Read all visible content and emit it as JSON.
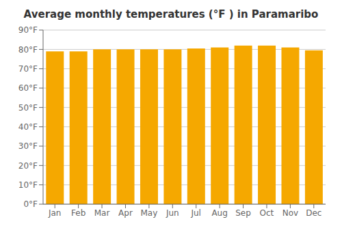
{
  "chart_data": {
    "type": "bar",
    "title": "Average monthly temperatures (°F ) in Paramaribo",
    "categories": [
      "Jan",
      "Feb",
      "Mar",
      "Apr",
      "May",
      "Jun",
      "Jul",
      "Aug",
      "Sep",
      "Oct",
      "Nov",
      "Dec"
    ],
    "values": [
      79,
      79,
      80,
      80,
      80,
      80,
      80.5,
      81,
      82,
      82,
      81,
      79.5
    ],
    "color": "#F5A800",
    "ylim": [
      0,
      90
    ],
    "yticks": [
      {
        "value": 0,
        "label": "0°F"
      },
      {
        "value": 10,
        "label": "10°F"
      },
      {
        "value": 20,
        "label": "20°F"
      },
      {
        "value": 30,
        "label": "30°F"
      },
      {
        "value": 40,
        "label": "40°F"
      },
      {
        "value": 50,
        "label": "50°F"
      },
      {
        "value": 60,
        "label": "60°F"
      },
      {
        "value": 70,
        "label": "70°F"
      },
      {
        "value": 80,
        "label": "80°F"
      },
      {
        "value": 90,
        "label": "90°F"
      }
    ],
    "grid": true
  }
}
